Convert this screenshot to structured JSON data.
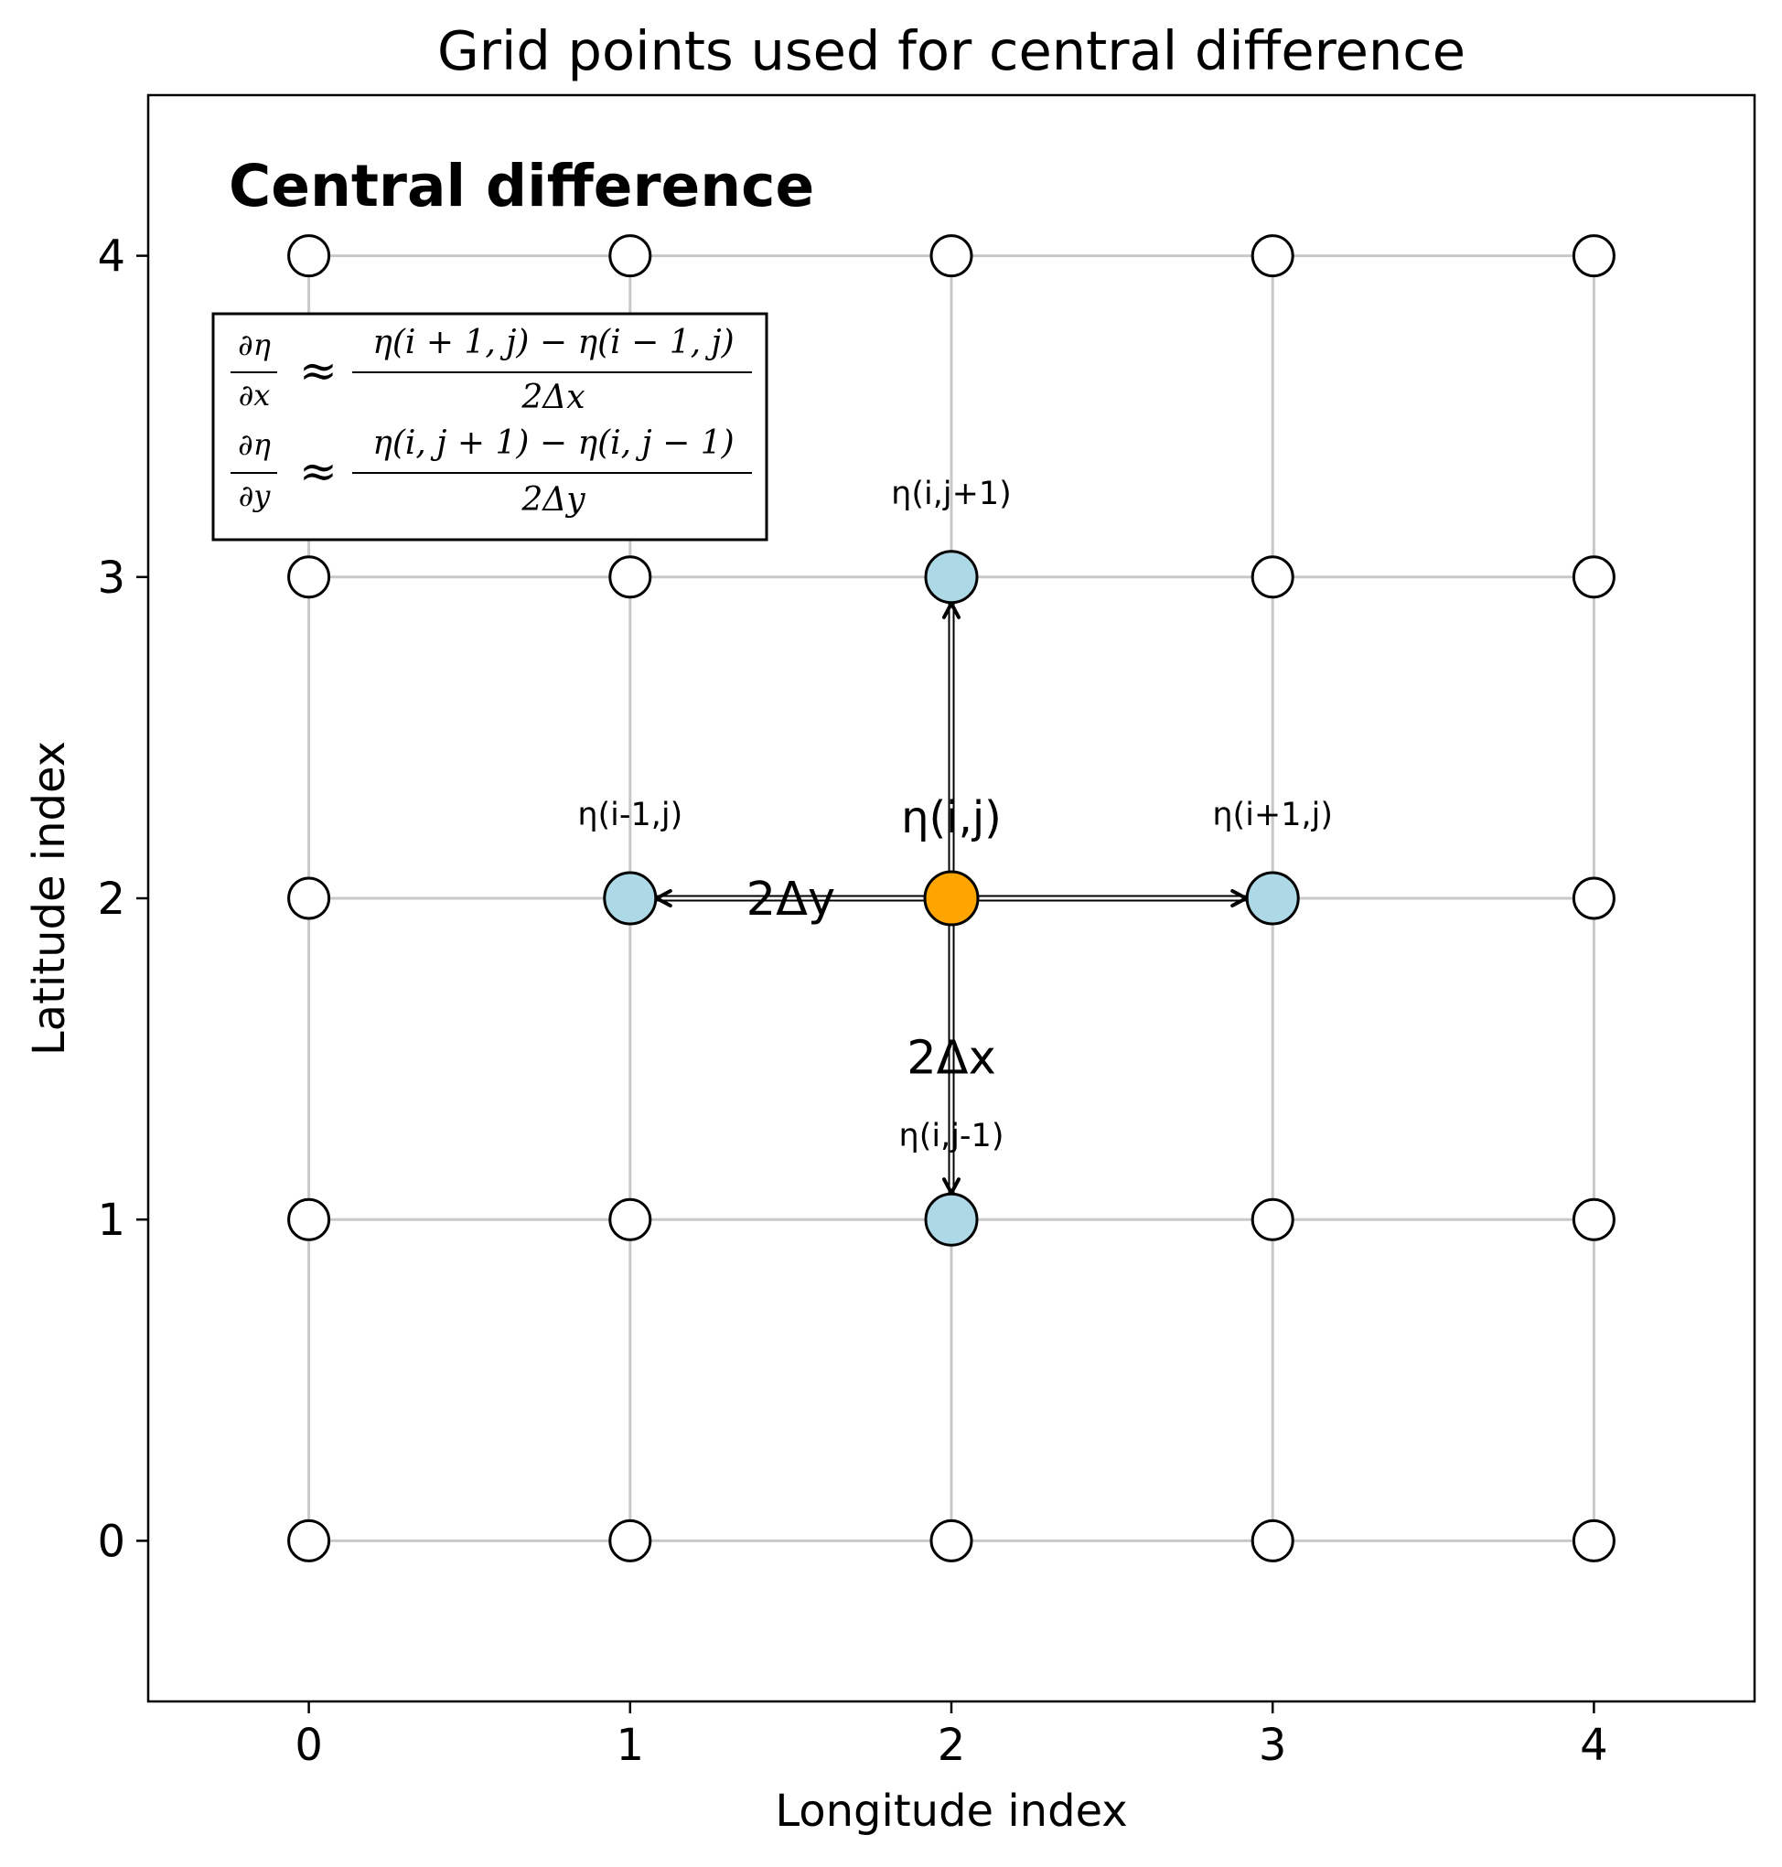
{
  "chart_data": {
    "type": "scatter",
    "title": "Grid points used for central difference",
    "xlabel": "Longitude index",
    "ylabel": "Latitude index",
    "xlim": [
      -0.5,
      4.5
    ],
    "ylim": [
      -0.5,
      4.5
    ],
    "x_ticks": [
      "0",
      "1",
      "2",
      "3",
      "4"
    ],
    "y_ticks": [
      "0",
      "1",
      "2",
      "3",
      "4"
    ],
    "grid": true,
    "heading": "Central difference",
    "grid_points": {
      "x": [
        0,
        1,
        2,
        3,
        4
      ],
      "y": [
        0,
        1,
        2,
        3,
        4
      ],
      "color": "#ffffff"
    },
    "neighbor_points": [
      {
        "label": "η(i-1,j)",
        "x": 1,
        "y": 2
      },
      {
        "label": "η(i+1,j)",
        "x": 3,
        "y": 2
      },
      {
        "label": "η(i,j+1)",
        "x": 2,
        "y": 3
      },
      {
        "label": "η(i,j-1)",
        "x": 2,
        "y": 1
      }
    ],
    "neighbor_color": "#add8e6",
    "center_point": {
      "label": "η(i,j)",
      "x": 2,
      "y": 2,
      "color": "#ffa500"
    },
    "distance_labels": {
      "horizontal": "2Δy",
      "vertical": "2Δx"
    },
    "formula": {
      "dx_numerator": "∂η",
      "dx_denominator": "∂x",
      "dx_rhs_numerator": "η(i + 1, j) − η(i − 1, j)",
      "dx_rhs_denominator": "2Δx",
      "dy_numerator": "∂η",
      "dy_denominator": "∂y",
      "dy_rhs_numerator": "η(i, j + 1) − η(i, j − 1)",
      "dy_rhs_denominator": "2Δy",
      "approx_symbol": "≈"
    }
  }
}
